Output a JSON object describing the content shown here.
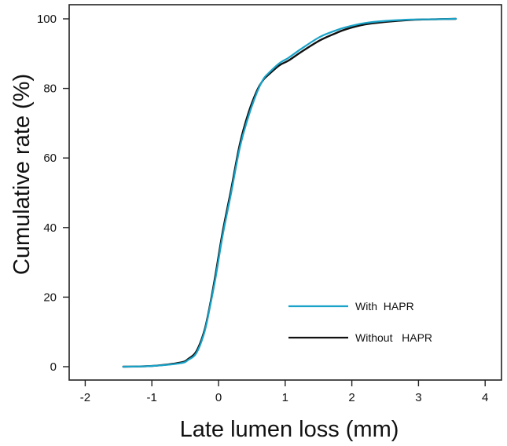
{
  "chart_data": {
    "type": "line",
    "title": "",
    "xlabel": "Late lumen loss (mm)",
    "ylabel": "Cumulative rate (%)",
    "xlim": [
      -2.2,
      4.25
    ],
    "ylim": [
      -4,
      104
    ],
    "x_ticks": [
      -2,
      -1,
      0,
      1,
      2,
      3,
      4
    ],
    "y_ticks": [
      0,
      20,
      40,
      60,
      80,
      100
    ],
    "grid": false,
    "legend_position": "lower right (inside)",
    "series": [
      {
        "name": "With  HAPR",
        "color": "#1aa3c8",
        "x": [
          -1.43,
          -1.0,
          -0.57,
          -0.45,
          -0.33,
          -0.21,
          -0.12,
          -0.04,
          0.06,
          0.19,
          0.32,
          0.45,
          0.58,
          0.67,
          0.73,
          0.91,
          1.05,
          1.25,
          1.52,
          1.75,
          1.91,
          2.2,
          2.5,
          2.9,
          3.3,
          3.56
        ],
        "y": [
          0,
          0.2,
          1,
          2,
          4,
          10,
          18,
          26,
          37.5,
          50,
          63,
          72,
          79,
          82.6,
          84,
          87.2,
          88.8,
          91.5,
          94.8,
          96.6,
          97.6,
          98.8,
          99.4,
          99.8,
          99.9,
          100
        ]
      },
      {
        "name": "Without   HAPR",
        "color": "#111111",
        "x": [
          -1.43,
          -1.0,
          -0.57,
          -0.45,
          -0.33,
          -0.21,
          -0.12,
          -0.04,
          0.06,
          0.19,
          0.32,
          0.45,
          0.58,
          0.67,
          0.73,
          0.91,
          1.05,
          1.25,
          1.52,
          1.75,
          1.91,
          2.2,
          2.5,
          2.9,
          3.3,
          3.56
        ],
        "y": [
          0,
          0.2,
          1.2,
          2.3,
          4.5,
          10.5,
          18.5,
          27,
          38.5,
          51,
          64,
          73,
          79.5,
          82.4,
          83.6,
          86.6,
          88.0,
          90.6,
          93.8,
          95.8,
          97.0,
          98.4,
          99.1,
          99.7,
          99.9,
          100
        ]
      }
    ]
  },
  "legend": {
    "items": [
      {
        "label": "With  HAPR",
        "color": "#1aa3c8"
      },
      {
        "label": "Without   HAPR",
        "color": "#111111"
      }
    ]
  },
  "axes": {
    "x_title": "Late lumen loss (mm)",
    "y_title": "Cumulative rate (%)",
    "x_tick_labels": [
      "-2",
      "-1",
      "0",
      "1",
      "2",
      "3",
      "4"
    ],
    "y_tick_labels": [
      "0",
      "20",
      "40",
      "60",
      "80",
      "100"
    ]
  }
}
